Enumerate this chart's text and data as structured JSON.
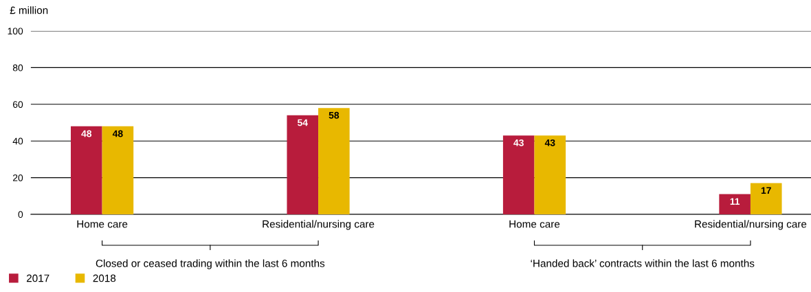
{
  "chart_data": {
    "type": "bar",
    "ylabel": "£ million",
    "categories": [
      "Home care",
      "Residential/nursing care",
      "Home care",
      "Residential/nursing care"
    ],
    "series": [
      {
        "name": "2017",
        "color": "#b81c3c",
        "values": [
          48,
          54,
          43,
          11
        ]
      },
      {
        "name": "2018",
        "color": "#e8b800",
        "values": [
          48,
          58,
          43,
          17
        ]
      }
    ],
    "ylim": [
      0,
      100
    ],
    "yticks": [
      0,
      20,
      40,
      60,
      80,
      100
    ],
    "grid": "y",
    "legend": "bottom left",
    "data_labels": true,
    "annotations": [
      "Closed or ceased trading within the last 6 months",
      "‘Handed back’ contracts within the last 6 months"
    ]
  }
}
